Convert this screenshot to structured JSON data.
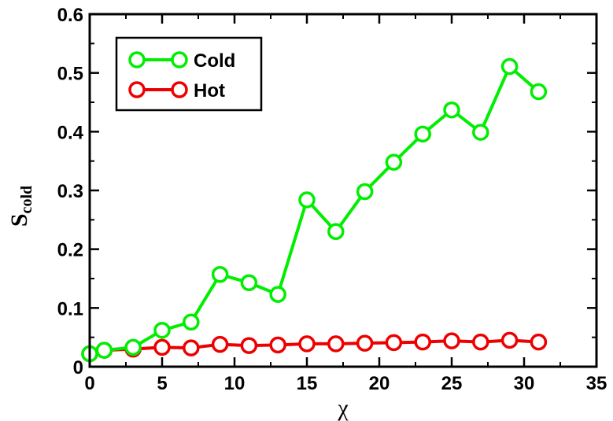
{
  "chart_data": {
    "type": "line",
    "title": "",
    "xlabel": "χ",
    "ylabel_main": "S",
    "ylabel_sub": "cold",
    "xlim": [
      0,
      35
    ],
    "ylim": [
      0,
      0.6
    ],
    "x_ticks": [
      0,
      5,
      10,
      15,
      20,
      25,
      30,
      35
    ],
    "y_ticks": [
      0,
      0.1,
      0.2,
      0.3,
      0.4,
      0.5,
      0.6
    ],
    "x_tick_labels": [
      "0",
      "5",
      "10",
      "15",
      "20",
      "25",
      "30",
      "35"
    ],
    "y_tick_labels": [
      "0",
      "0.1",
      "0.2",
      "0.3",
      "0.4",
      "0.5",
      "0.6"
    ],
    "grid": false,
    "legend_position": "top-left",
    "series": [
      {
        "name": "Cold",
        "color": "#00ee00",
        "x": [
          0,
          1,
          3,
          5,
          7,
          9,
          11,
          13,
          15,
          17,
          19,
          21,
          23,
          25,
          27,
          29,
          31
        ],
        "y": [
          0.022,
          0.028,
          0.033,
          0.062,
          0.076,
          0.157,
          0.143,
          0.123,
          0.284,
          0.23,
          0.298,
          0.348,
          0.396,
          0.437,
          0.399,
          0.511,
          0.468
        ]
      },
      {
        "name": "Hot",
        "color": "#ee0000",
        "x": [
          0,
          1,
          3,
          5,
          7,
          9,
          11,
          13,
          15,
          17,
          19,
          21,
          23,
          25,
          27,
          29,
          31
        ],
        "y": [
          0.022,
          0.028,
          0.03,
          0.033,
          0.032,
          0.038,
          0.036,
          0.037,
          0.039,
          0.039,
          0.04,
          0.041,
          0.042,
          0.044,
          0.042,
          0.045,
          0.042
        ]
      }
    ]
  }
}
